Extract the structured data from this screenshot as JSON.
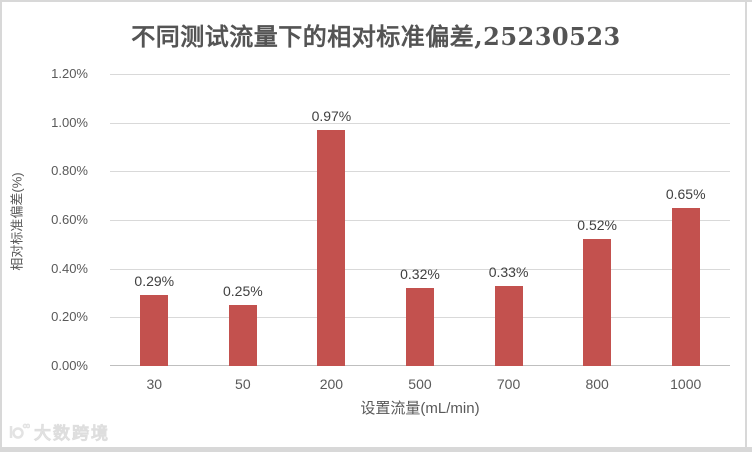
{
  "chart_data": {
    "type": "bar",
    "title": "不同测试流量下的相对标准偏差,25230523",
    "xlabel": "设置流量(mL/min)",
    "ylabel": "相对标准偏差(%)",
    "categories": [
      "30",
      "50",
      "200",
      "500",
      "700",
      "800",
      "1000"
    ],
    "values": [
      0.29,
      0.25,
      0.97,
      0.32,
      0.33,
      0.52,
      0.65
    ],
    "data_labels": [
      "0.29%",
      "0.25%",
      "0.97%",
      "0.32%",
      "0.33%",
      "0.52%",
      "0.65%"
    ],
    "ylim": [
      0,
      1.2
    ],
    "ytick_step": 0.2,
    "ytick_labels": [
      "0.00%",
      "0.20%",
      "0.40%",
      "0.60%",
      "0.80%",
      "1.00%",
      "1.20%"
    ],
    "grid": true,
    "legend": false,
    "bar_color": "#c3514e",
    "gridline_color": "#d9d9d9",
    "axis_line_color": "#bfbfbf",
    "title_color": "#545454",
    "label_color": "#404040",
    "tick_color": "#595959"
  },
  "watermark": {
    "text": "大数跨境"
  }
}
